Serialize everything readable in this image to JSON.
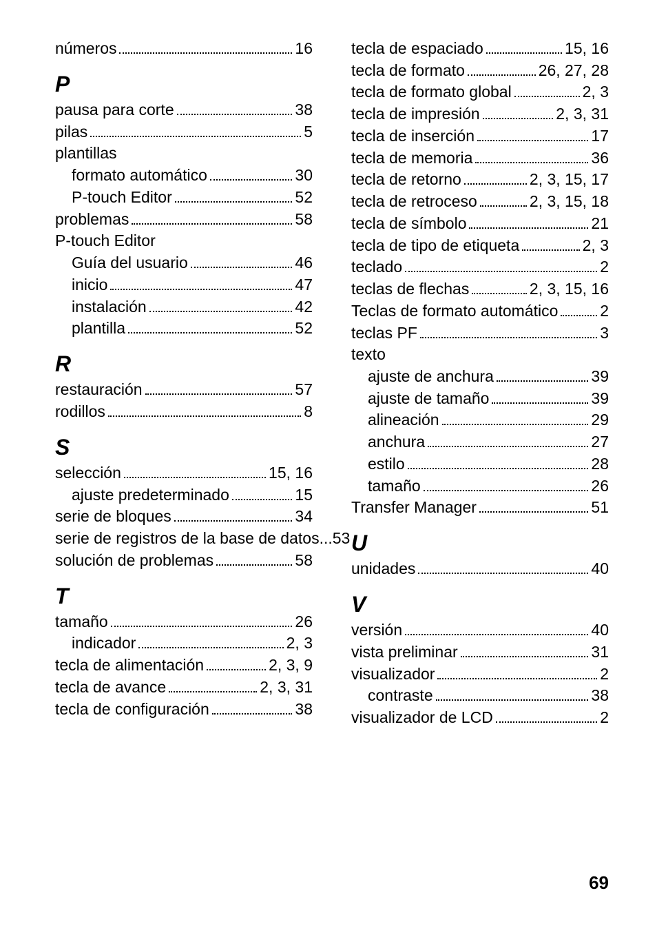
{
  "page_number": "69",
  "sections": [
    {
      "entries": [
        {
          "label": "números",
          "pages": "16"
        }
      ]
    },
    {
      "letter": "P",
      "entries": [
        {
          "label": "pausa para corte",
          "pages": "38"
        },
        {
          "label": "pilas",
          "pages": "5"
        },
        {
          "label": "plantillas"
        },
        {
          "label": "formato automático",
          "pages": "30",
          "sub": true
        },
        {
          "label": "P-touch Editor",
          "pages": "52",
          "sub": true
        },
        {
          "label": "problemas",
          "pages": "58"
        },
        {
          "label": "P-touch Editor"
        },
        {
          "label": "Guía del usuario",
          "pages": "46",
          "sub": true
        },
        {
          "label": "inicio",
          "pages": "47",
          "sub": true
        },
        {
          "label": "instalación",
          "pages": "42",
          "sub": true
        },
        {
          "label": "plantilla",
          "pages": "52",
          "sub": true
        }
      ]
    },
    {
      "letter": "R",
      "entries": [
        {
          "label": "restauración",
          "pages": "57"
        },
        {
          "label": "rodillos",
          "pages": "8"
        }
      ]
    },
    {
      "letter": "S",
      "entries": [
        {
          "label": "selección",
          "pages": "15, 16"
        },
        {
          "label": "ajuste predeterminado",
          "pages": "15",
          "sub": true
        },
        {
          "label": "serie de bloques",
          "pages": "34"
        },
        {
          "label": "serie de registros de la base de datos",
          "pages": "53",
          "noleader": true
        },
        {
          "label": "solución de problemas",
          "pages": "58"
        }
      ]
    },
    {
      "letter": "T",
      "entries": [
        {
          "label": "tamaño",
          "pages": "26"
        },
        {
          "label": "indicador",
          "pages": "2, 3",
          "sub": true
        },
        {
          "label": "tecla de alimentación",
          "pages": "2, 3, 9"
        },
        {
          "label": "tecla de avance",
          "pages": "2, 3, 31"
        },
        {
          "label": "tecla de configuración",
          "pages": "38"
        },
        {
          "label": "tecla de espaciado",
          "pages": "15, 16"
        },
        {
          "label": "tecla de formato",
          "pages": "26, 27, 28"
        },
        {
          "label": "tecla de formato global",
          "pages": "2, 3"
        },
        {
          "label": "tecla de impresión",
          "pages": "2, 3, 31"
        },
        {
          "label": "tecla de inserción",
          "pages": "17"
        },
        {
          "label": "tecla de memoria",
          "pages": "36"
        },
        {
          "label": "tecla de retorno",
          "pages": "2, 3, 15, 17"
        },
        {
          "label": "tecla de retroceso",
          "pages": "2, 3, 15, 18"
        },
        {
          "label": "tecla de símbolo",
          "pages": "21"
        },
        {
          "label": "tecla de tipo de etiqueta",
          "pages": "2, 3"
        },
        {
          "label": "teclado",
          "pages": "2"
        },
        {
          "label": "teclas de flechas",
          "pages": "2, 3, 15, 16"
        },
        {
          "label": "Teclas de formato automático",
          "pages": "2"
        },
        {
          "label": "teclas PF",
          "pages": "3"
        },
        {
          "label": "texto"
        },
        {
          "label": "ajuste de anchura",
          "pages": "39",
          "sub": true
        },
        {
          "label": "ajuste de tamaño",
          "pages": "39",
          "sub": true
        },
        {
          "label": "alineación",
          "pages": "29",
          "sub": true
        },
        {
          "label": "anchura",
          "pages": "27",
          "sub": true
        },
        {
          "label": "estilo",
          "pages": "28",
          "sub": true
        },
        {
          "label": "tamaño",
          "pages": "26",
          "sub": true
        },
        {
          "label": "Transfer Manager",
          "pages": "51"
        }
      ]
    },
    {
      "letter": "U",
      "entries": [
        {
          "label": "unidades",
          "pages": "40"
        }
      ]
    },
    {
      "letter": "V",
      "entries": [
        {
          "label": "versión",
          "pages": "40"
        },
        {
          "label": "vista preliminar",
          "pages": "31"
        },
        {
          "label": "visualizador",
          "pages": "2"
        },
        {
          "label": "contraste",
          "pages": "38",
          "sub": true
        },
        {
          "label": "visualizador de LCD",
          "pages": "2"
        }
      ]
    }
  ]
}
